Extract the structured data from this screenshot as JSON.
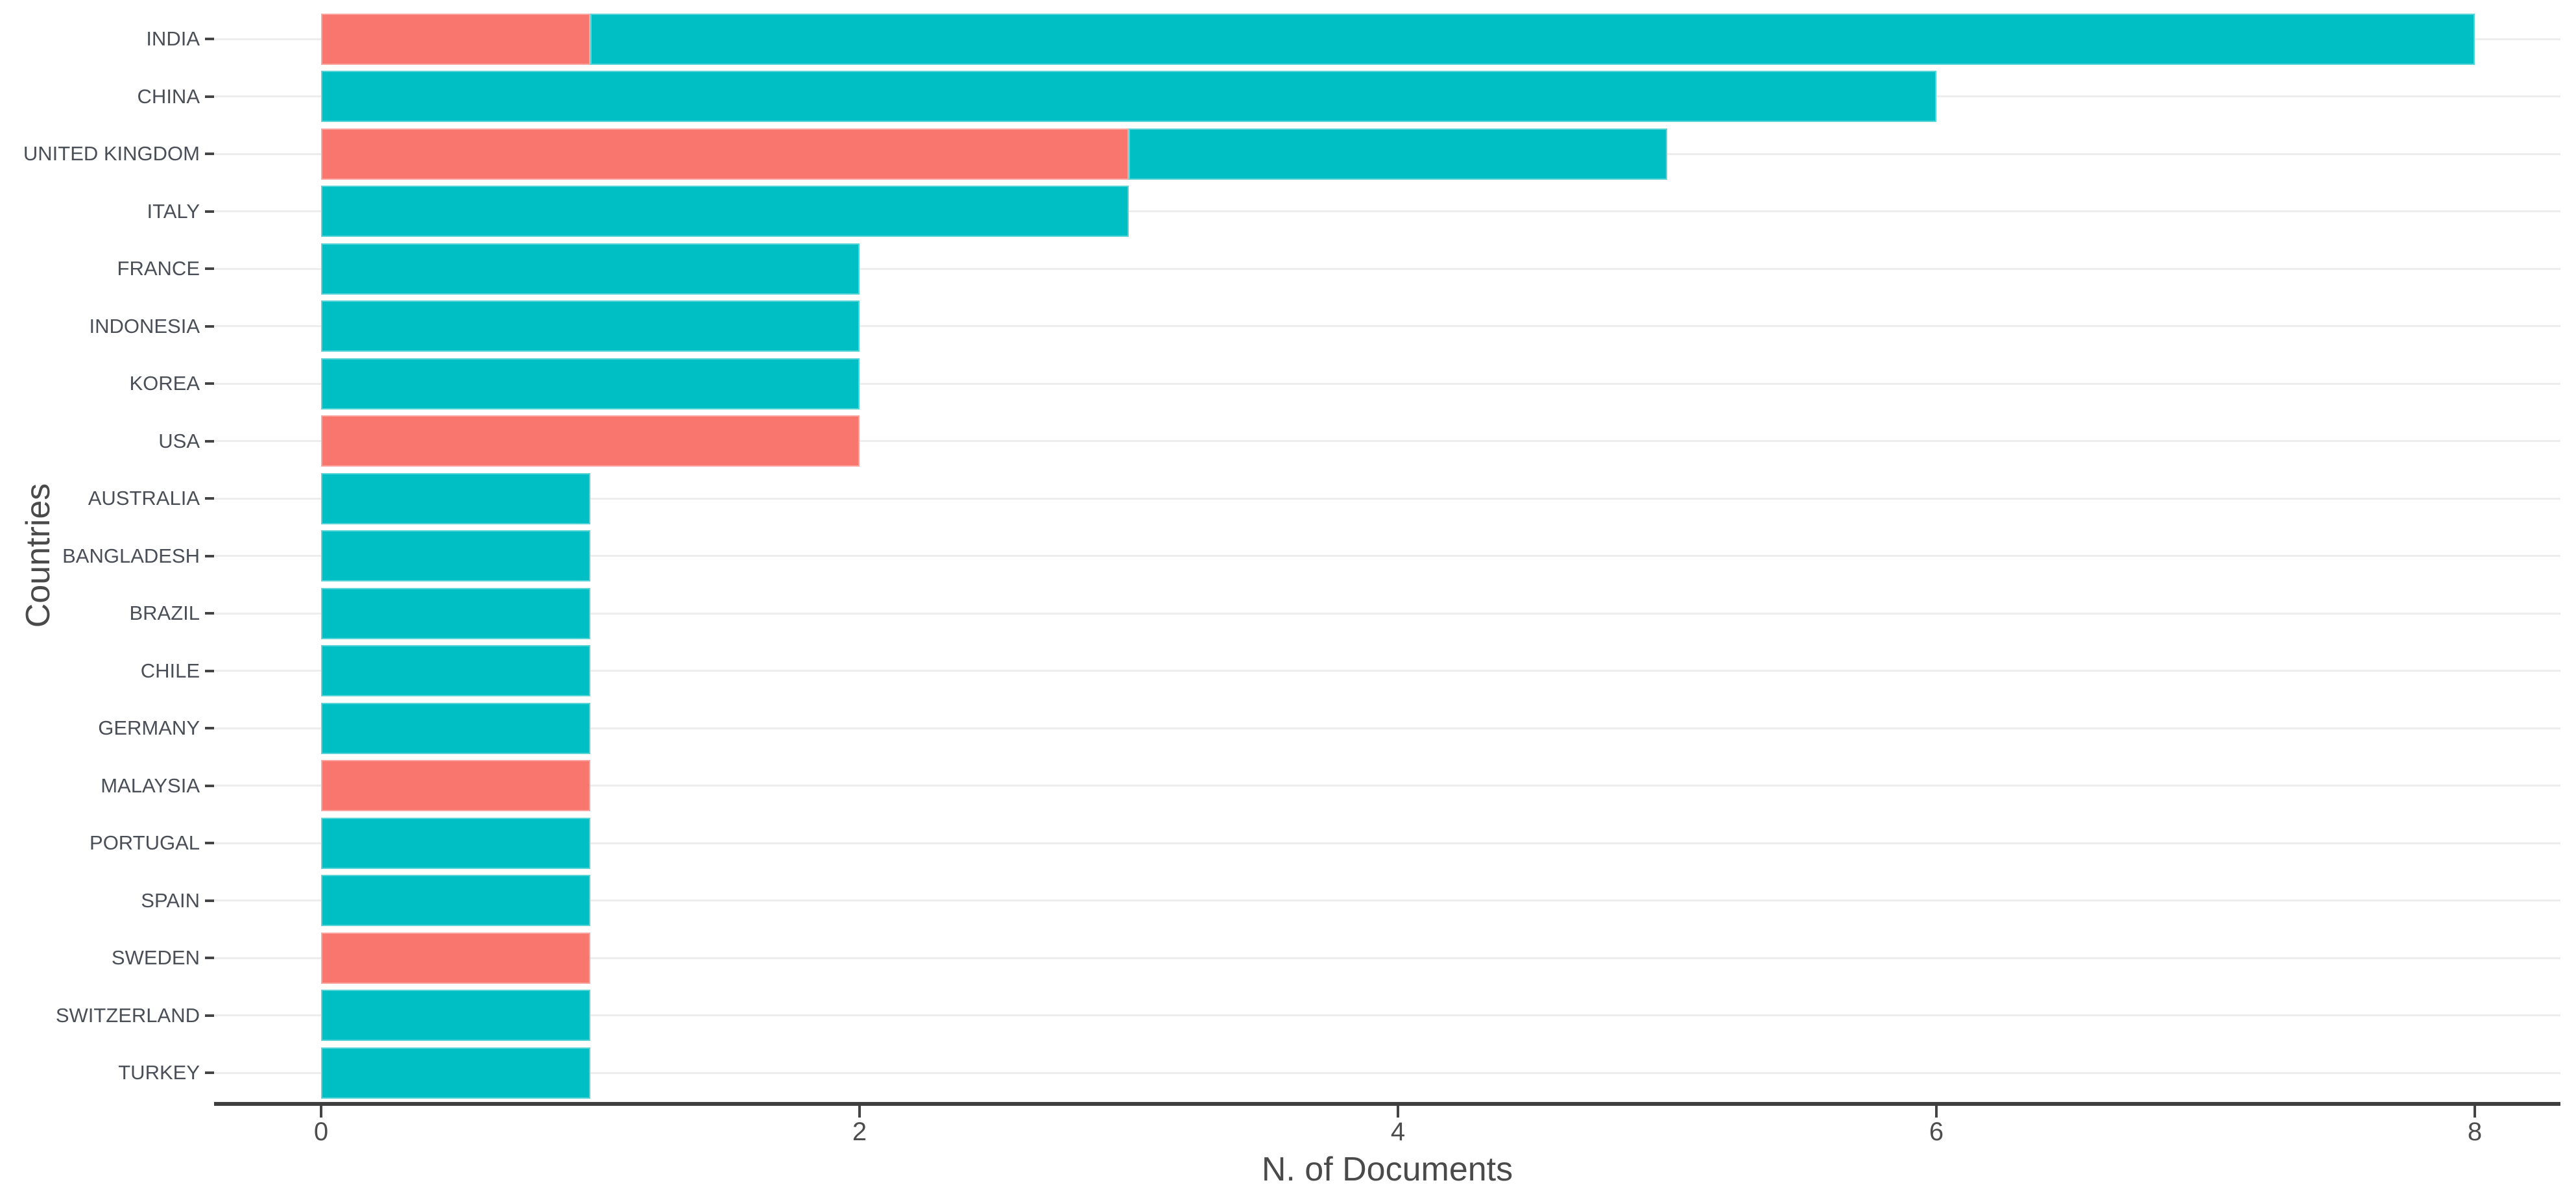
{
  "chart_data": {
    "type": "bar",
    "orientation": "horizontal",
    "stacked": true,
    "title": "",
    "xlabel": "N. of Documents",
    "ylabel": "Countries",
    "legend_position": "none",
    "grid": "horizontal category gridlines only",
    "xlim": [
      -0.4,
      8.32
    ],
    "xticks": [
      0,
      2,
      4,
      6,
      8
    ],
    "xtick_labels": [
      "0",
      "2",
      "4",
      "6",
      "8"
    ],
    "categories": [
      "INDIA",
      "CHINA",
      "UNITED KINGDOM",
      "ITALY",
      "FRANCE",
      "INDONESIA",
      "KOREA",
      "USA",
      "AUSTRALIA",
      "BANGLADESH",
      "BRAZIL",
      "CHILE",
      "GERMANY",
      "MALAYSIA",
      "PORTUGAL",
      "SPAIN",
      "SWEDEN",
      "SWITZERLAND",
      "TURKEY"
    ],
    "series": [
      {
        "name": "red-segment",
        "color": "#F8766D",
        "values": [
          1,
          0,
          3,
          0,
          0,
          0,
          0,
          2,
          0,
          0,
          0,
          0,
          0,
          1,
          0,
          0,
          1,
          0,
          0
        ]
      },
      {
        "name": "teal-segment",
        "color": "#00BFC4",
        "values": [
          7,
          6,
          2,
          3,
          2,
          2,
          2,
          0,
          1,
          1,
          1,
          1,
          1,
          0,
          1,
          1,
          0,
          1,
          1
        ]
      }
    ],
    "totals": [
      8,
      6,
      5,
      3,
      2,
      2,
      2,
      2,
      1,
      1,
      1,
      1,
      1,
      1,
      1,
      1,
      1,
      1,
      1
    ]
  },
  "colors": {
    "bar_red": "#F8766D",
    "bar_teal": "#00BFC4",
    "axis_line": "#3f3f3f",
    "grid_line": "#ededed",
    "tick_mark": "#444444",
    "tick_text": "#4d4d4d",
    "title_text": "#4a4a4a",
    "background": "#ffffff"
  }
}
